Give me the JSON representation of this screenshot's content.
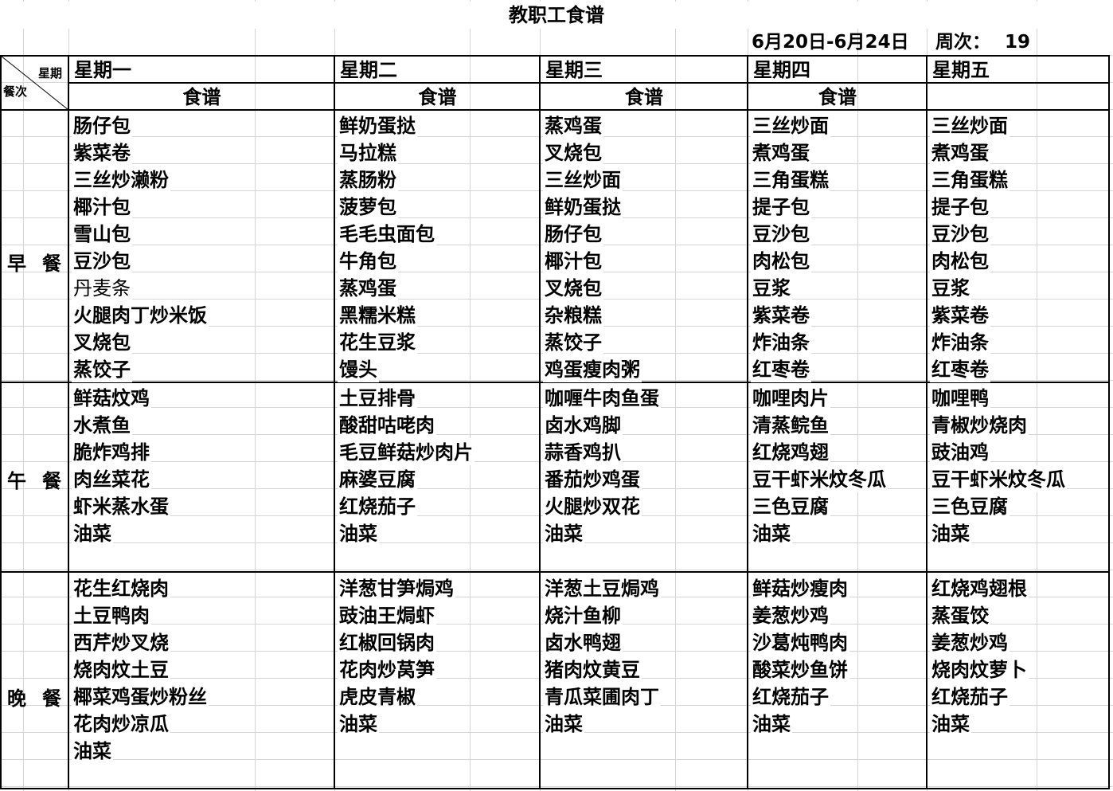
{
  "title": "教职工食谱",
  "date_range": "6月20日-6月24日",
  "week_label": "周次：",
  "week_number": "19",
  "header": {
    "corner_top": "星期",
    "corner_bottom": "餐次",
    "days": [
      "星期一",
      "星期二",
      "星期三",
      "星期四",
      "星期五"
    ],
    "sub_labels": [
      "食谱",
      "食谱",
      "食谱",
      "食谱",
      ""
    ]
  },
  "meals": [
    {
      "label": "早  餐",
      "label_chars": [
        "早",
        "餐"
      ],
      "columns": [
        [
          "肠仔包",
          "紫菜卷",
          "三丝炒濑粉",
          "椰汁包",
          "雪山包",
          "豆沙包",
          "丹麦条",
          "火腿肉丁炒米饭",
          "叉烧包",
          "蒸饺子"
        ],
        [
          "鲜奶蛋挞",
          "马拉糕",
          "蒸肠粉",
          "菠萝包",
          "毛毛虫面包",
          "牛角包",
          "蒸鸡蛋",
          "黑糯米糕",
          "花生豆浆",
          "馒头"
        ],
        [
          "蒸鸡蛋",
          "叉烧包",
          "三丝炒面",
          "鲜奶蛋挞",
          "肠仔包",
          "椰汁包",
          "叉烧包",
          "杂粮糕",
          "蒸饺子",
          "鸡蛋瘦肉粥"
        ],
        [
          "三丝炒面",
          "煮鸡蛋",
          "三角蛋糕",
          "提子包",
          "豆沙包",
          "肉松包",
          "豆浆",
          "紫菜卷",
          "炸油条",
          "红枣卷"
        ],
        [
          "三丝炒面",
          "煮鸡蛋",
          "三角蛋糕",
          "提子包",
          "豆沙包",
          "肉松包",
          "豆浆",
          "紫菜卷",
          "炸油条",
          "红枣卷"
        ]
      ]
    },
    {
      "label": "午  餐",
      "label_chars": [
        "午",
        "餐"
      ],
      "columns": [
        [
          "鲜菇炆鸡",
          "水煮鱼",
          "脆炸鸡排",
          "肉丝菜花",
          "虾米蒸水蛋",
          "油菜"
        ],
        [
          "土豆排骨",
          "酸甜咕咾肉",
          "毛豆鲜菇炒肉片",
          "麻婆豆腐",
          "红烧茄子",
          "油菜"
        ],
        [
          "咖喱牛肉鱼蛋",
          "卤水鸡脚",
          "蒜香鸡扒",
          "番茄炒鸡蛋",
          "火腿炒双花",
          "油菜"
        ],
        [
          "咖哩肉片",
          "清蒸鲩鱼",
          "红烧鸡翅",
          "豆干虾米炆冬瓜",
          "三色豆腐",
          "油菜"
        ],
        [
          "咖哩鸭",
          "青椒炒烧肉",
          "豉油鸡",
          "豆干虾米炆冬瓜",
          "三色豆腐",
          "油菜"
        ]
      ]
    },
    {
      "label": "晚  餐",
      "label_chars": [
        "晚",
        "餐"
      ],
      "columns": [
        [
          "花生红烧肉",
          "土豆鸭肉",
          "西芹炒叉烧",
          "烧肉炆土豆",
          "椰菜鸡蛋炒粉丝",
          "花肉炒凉瓜",
          "油菜"
        ],
        [
          "洋葱甘笋焗鸡",
          "豉油王焗虾",
          "红椒回锅肉",
          "花肉炒莴笋",
          "虎皮青椒",
          "油菜"
        ],
        [
          "洋葱土豆焗鸡",
          "烧汁鱼柳",
          "卤水鸭翅",
          "猪肉炆黄豆",
          "青瓜菜圃肉丁",
          "油菜"
        ],
        [
          "鲜菇炒瘦肉",
          "姜葱炒鸡",
          "沙葛炖鸭肉",
          "酸菜炒鱼饼",
          "红烧茄子",
          "油菜"
        ],
        [
          "红烧鸡翅根",
          "蒸蛋饺",
          "姜葱炒鸡",
          "烧肉炆萝卜",
          "红烧茄子",
          "油菜"
        ]
      ]
    }
  ]
}
